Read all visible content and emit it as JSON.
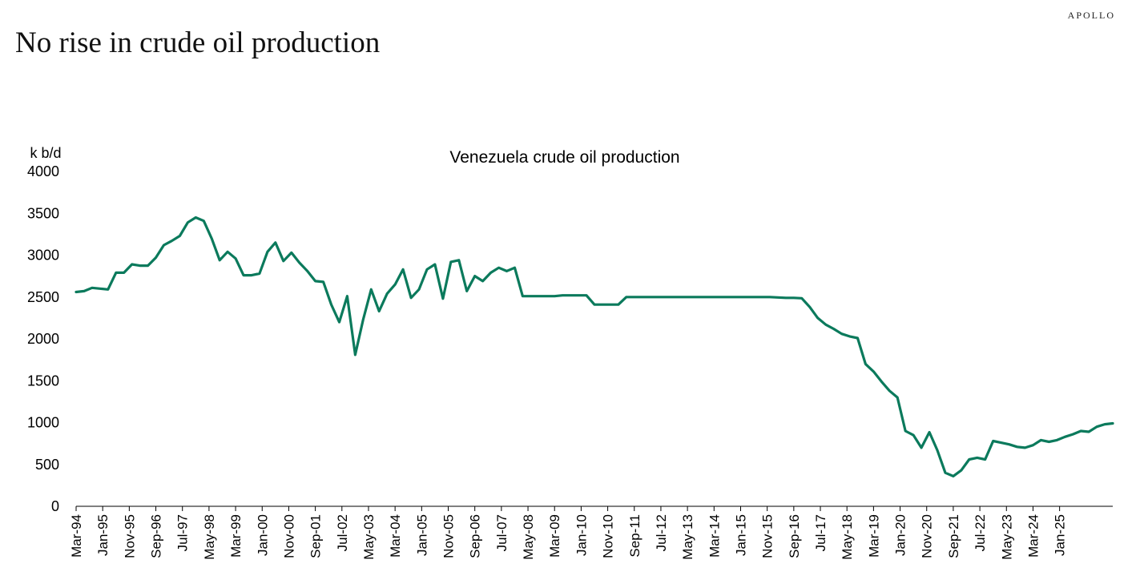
{
  "brand": "APOLLO",
  "headline": "No rise in crude oil production",
  "colors": {
    "line": "#0b7a5c",
    "axis": "#000000",
    "text": "#000000"
  },
  "chart_data": {
    "type": "line",
    "title": "Venezuela crude oil production",
    "ylabel": "k b/d",
    "xlabel": "",
    "ylim": [
      0,
      4000
    ],
    "yticks": [
      0,
      500,
      1000,
      1500,
      2000,
      2500,
      3000,
      3500,
      4000
    ],
    "grid": false,
    "legend": "none",
    "xtick_labels": [
      "Mar-94",
      "Jan-95",
      "Nov-95",
      "Sep-96",
      "Jul-97",
      "May-98",
      "Mar-99",
      "Jan-00",
      "Nov-00",
      "Sep-01",
      "Jul-02",
      "May-03",
      "Mar-04",
      "Jan-05",
      "Nov-05",
      "Sep-06",
      "Jul-07",
      "May-08",
      "Mar-09",
      "Jan-10",
      "Nov-10",
      "Sep-11",
      "Jul-12",
      "May-13",
      "Mar-14",
      "Jan-15",
      "Nov-15",
      "Sep-16",
      "Jul-17",
      "May-18",
      "Mar-19",
      "Jan-20",
      "Nov-20",
      "Sep-21",
      "Jul-22",
      "May-23",
      "Mar-24",
      "Jan-25"
    ],
    "series": [
      {
        "values": [
          2560,
          2570,
          2610,
          2600,
          2590,
          2790,
          2790,
          2890,
          2875,
          2875,
          2970,
          3120,
          3170,
          3230,
          3390,
          3450,
          3410,
          3200,
          2940,
          3040,
          2960,
          2760,
          2760,
          2780,
          3040,
          3150,
          2930,
          3030,
          2910,
          2810,
          2690,
          2680,
          2410,
          2200,
          2510,
          1810,
          2230,
          2590,
          2330,
          2540,
          2650,
          2830,
          2490,
          2590,
          2830,
          2890,
          2480,
          2920,
          2940,
          2570,
          2750,
          2690,
          2790,
          2850,
          2810,
          2850,
          2510,
          2510,
          2510,
          2510,
          2510,
          2520,
          2520,
          2520,
          2520,
          2410,
          2410,
          2410,
          2410,
          2500,
          2500,
          2500,
          2500,
          2500,
          2500,
          2500,
          2500,
          2500,
          2500,
          2500,
          2500,
          2500,
          2500,
          2500,
          2500,
          2500,
          2500,
          2500,
          2495,
          2490,
          2490,
          2485,
          2380,
          2250,
          2170,
          2120,
          2060,
          2030,
          2010,
          1700,
          1610,
          1490,
          1380,
          1300,
          900,
          850,
          700,
          885,
          670,
          400,
          360,
          430,
          560,
          580,
          560,
          780,
          760,
          740,
          710,
          700,
          730,
          790,
          770,
          790,
          830,
          860,
          900,
          890,
          950,
          980,
          990
        ]
      }
    ]
  }
}
